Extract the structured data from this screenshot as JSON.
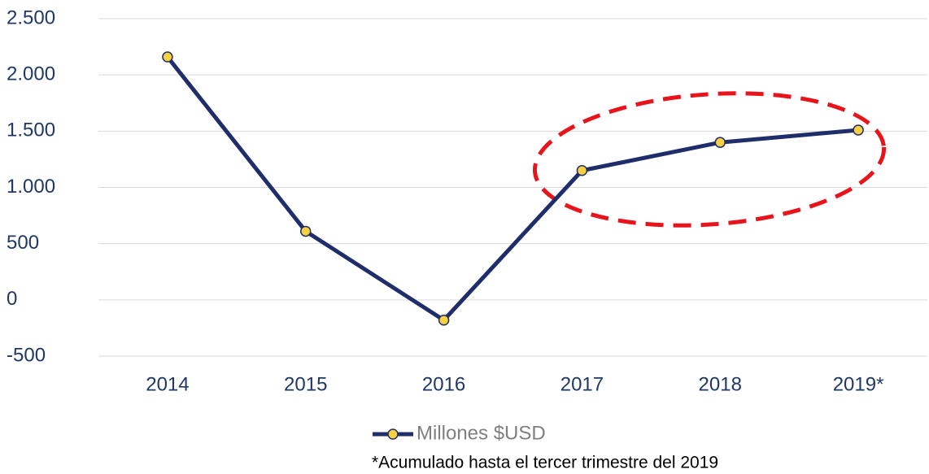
{
  "chart_data": {
    "type": "line",
    "categories": [
      "2014",
      "2015",
      "2016",
      "2017",
      "2018",
      "2019*"
    ],
    "series": [
      {
        "name": "Millones $USD",
        "color": "#1f2d6b",
        "marker_color": "#f7d23e",
        "values": [
          2160,
          610,
          -180,
          1150,
          1400,
          1510
        ]
      }
    ],
    "ylim": [
      -500,
      2500
    ],
    "yticks": [
      -500,
      0,
      500,
      {
        "value": 1000,
        "label": "1.000"
      },
      {
        "value": 1500,
        "label": "1.500"
      },
      {
        "value": 2000,
        "label": "2.000"
      },
      {
        "value": 2500,
        "label": "2.500"
      }
    ],
    "grid": true,
    "legend": "bottom",
    "annotation": "*Acumulado hasta el tercer trimestre del 2019"
  }
}
